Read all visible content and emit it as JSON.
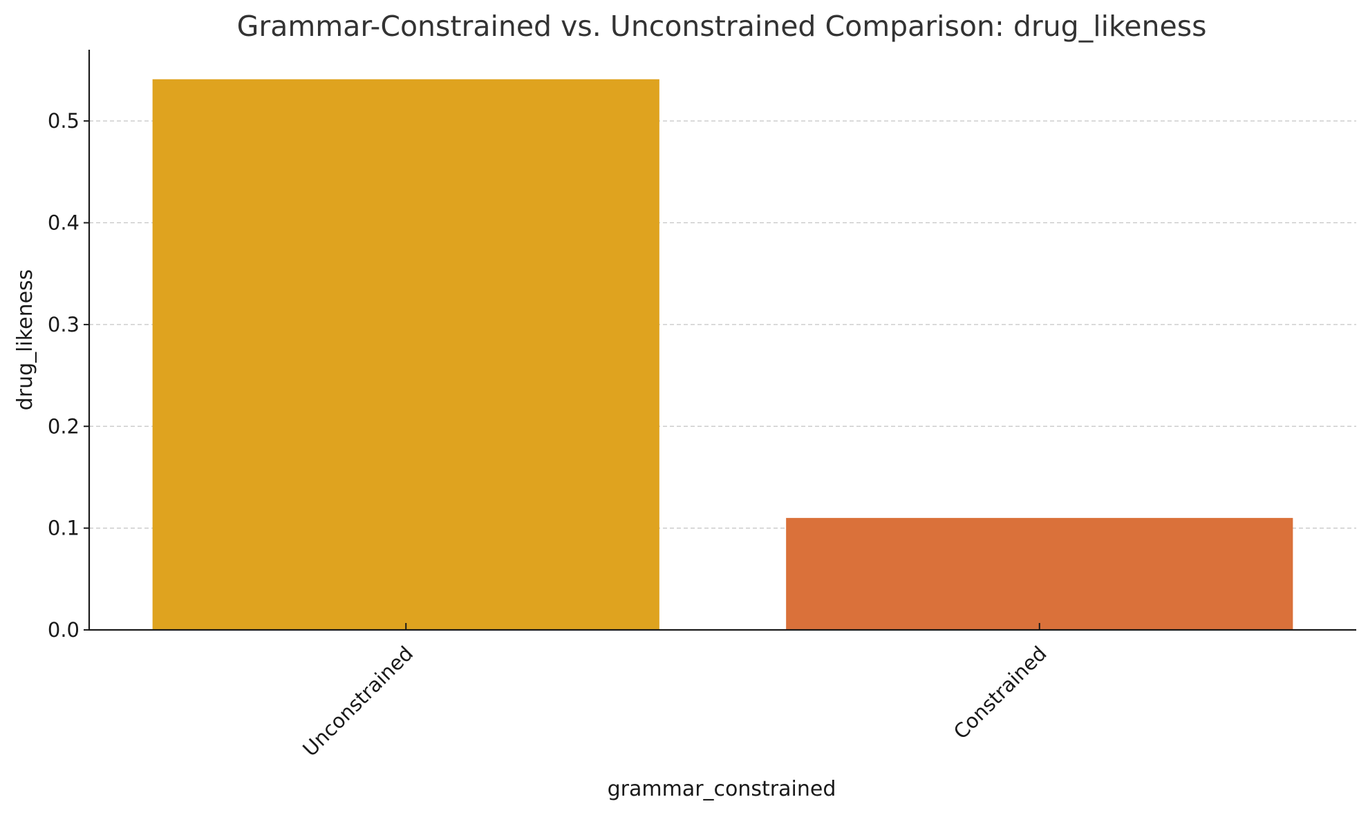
{
  "chart_data": {
    "type": "bar",
    "title": "Grammar-Constrained vs. Unconstrained Comparison: drug_likeness",
    "xlabel": "grammar_constrained",
    "ylabel": "drug_likeness",
    "categories": [
      "Unconstrained",
      "Constrained"
    ],
    "values": [
      0.541,
      0.11
    ],
    "colors": [
      "#DFA31F",
      "#DA713A"
    ],
    "ylim": [
      0,
      0.57
    ],
    "yticks": [
      0.0,
      0.1,
      0.2,
      0.3,
      0.4,
      0.5
    ],
    "ytick_labels": [
      "0.0",
      "0.1",
      "0.2",
      "0.3",
      "0.4",
      "0.5"
    ],
    "grid": "y-dashed",
    "legend": "none"
  }
}
